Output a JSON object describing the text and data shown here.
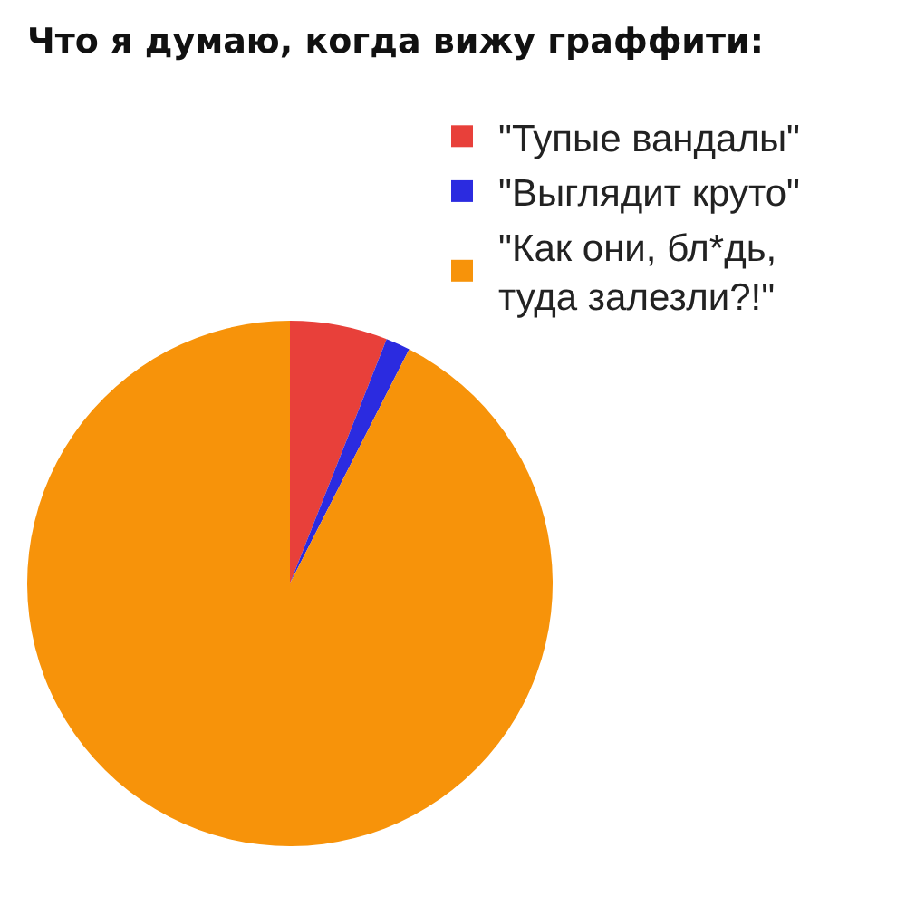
{
  "chart_data": {
    "type": "pie",
    "title": "Что я думаю, когда вижу граффити:",
    "categories": [
      "\"Тупые вандалы\"",
      "\"Выглядит круто\"",
      "\"Как они, бл*дь, туда залезли?!\""
    ],
    "values": [
      6,
      1.5,
      92.5
    ],
    "colors": [
      "#e8403a",
      "#2b2be0",
      "#f7930a"
    ],
    "legend": "top right"
  }
}
